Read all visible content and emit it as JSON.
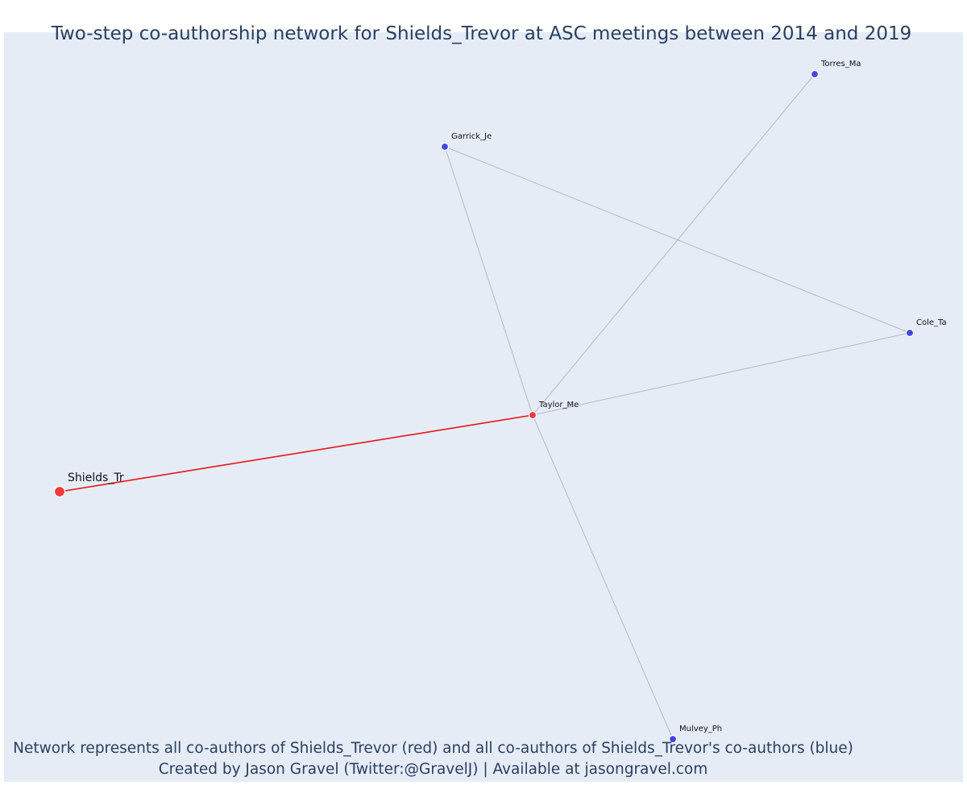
{
  "title": "Two-step co-authorship network for Shields_Trevor at ASC meetings between 2014 and 2019",
  "caption": {
    "line1": "Network represents all co-authors of Shields_Trevor (red) and all co-authors of Shields_Trevor's co-authors (blue)",
    "line2": "Created by Jason Gravel (Twitter:@GravelJ) | Available at jasongravel.com"
  },
  "colors": {
    "background": "#e5ecf6",
    "focal": "#f0393c",
    "first_degree": "#f0393c",
    "second_degree": "#4545e8",
    "focal_edge": "#e8151b",
    "other_edge": "#b3b8cc",
    "text": "#2a3f5f"
  },
  "nodes": [
    {
      "id": "Shields_Tr",
      "label": "Shields_Tr",
      "role": "focal"
    },
    {
      "id": "Taylor_Me",
      "label": "Taylor_Me",
      "role": "first_degree"
    },
    {
      "id": "Garrick_Je",
      "label": "Garrick_Je",
      "role": "second_degree"
    },
    {
      "id": "Torres_Ma",
      "label": "Torres_Ma",
      "role": "second_degree"
    },
    {
      "id": "Cole_Ta",
      "label": "Cole_Ta",
      "role": "second_degree"
    },
    {
      "id": "Mulvey_Ph",
      "label": "Mulvey_Ph",
      "role": "second_degree"
    }
  ],
  "edges": [
    {
      "source": "Shields_Tr",
      "target": "Taylor_Me"
    },
    {
      "source": "Taylor_Me",
      "target": "Garrick_Je"
    },
    {
      "source": "Taylor_Me",
      "target": "Torres_Ma"
    },
    {
      "source": "Taylor_Me",
      "target": "Cole_Ta"
    },
    {
      "source": "Taylor_Me",
      "target": "Mulvey_Ph"
    },
    {
      "source": "Garrick_Je",
      "target": "Cole_Ta"
    }
  ]
}
